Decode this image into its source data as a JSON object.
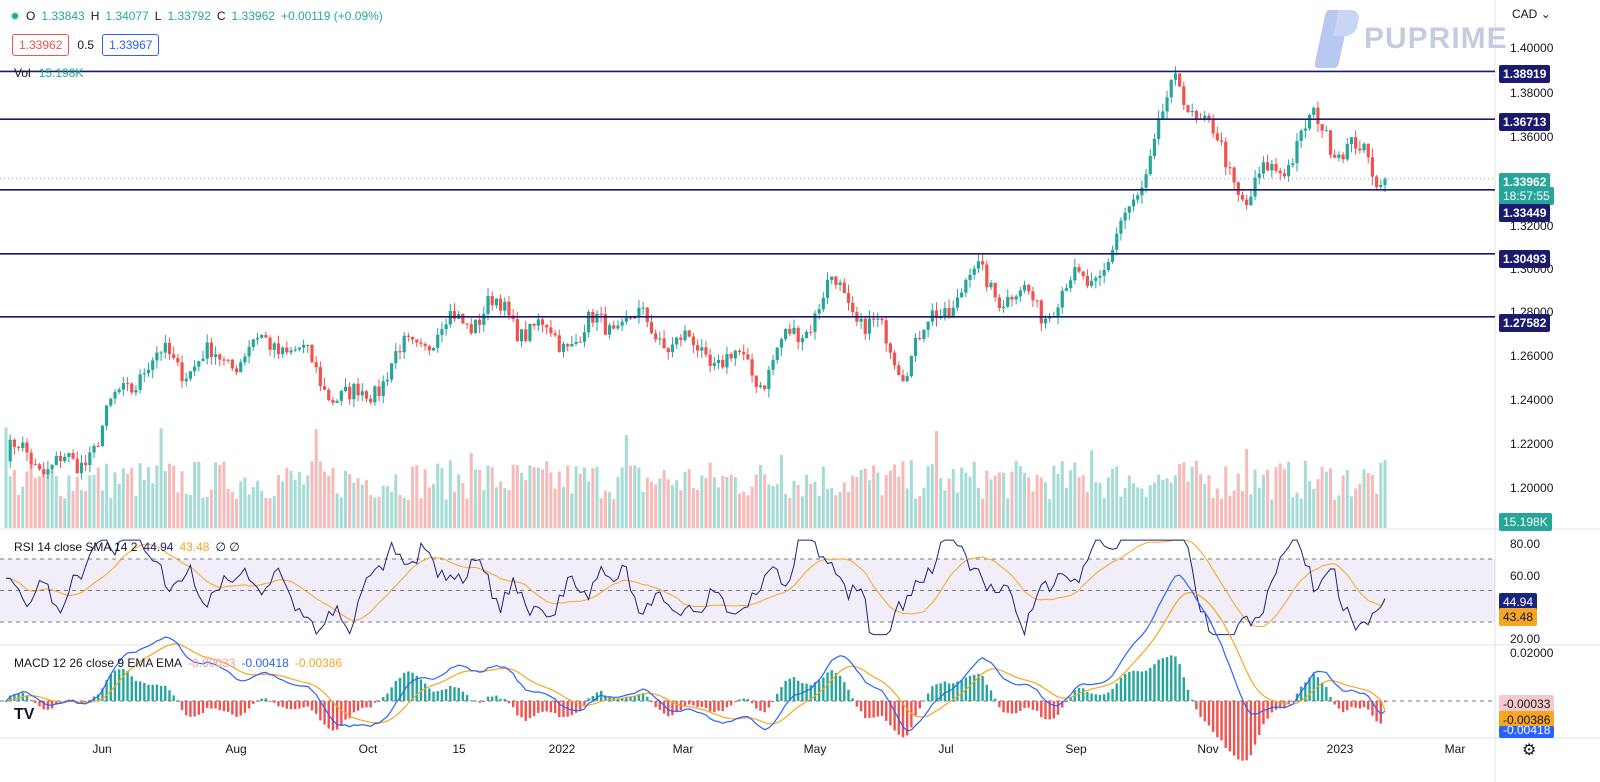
{
  "header": {
    "open_label": "O",
    "open": "1.33843",
    "high_label": "H",
    "high": "1.34077",
    "low_label": "L",
    "low": "1.33792",
    "close_label": "C",
    "close": "1.33962",
    "change": "+0.00119 (+0.09%)",
    "bid": "1.33962",
    "spread": "0.5",
    "ask": "1.33967",
    "vol_label": "Vol",
    "vol_value": "15.198K",
    "currency": "CAD",
    "brand": "PUPRIME"
  },
  "price_axis": [
    "1.40000",
    "1.38000",
    "1.36000",
    "1.32000",
    "1.30000",
    "1.28000",
    "1.26000",
    "1.24000",
    "1.22000",
    "1.20000"
  ],
  "price_tags": {
    "res1": "1.38919",
    "res2": "1.36713",
    "current": "1.33962",
    "countdown": "18:57:55",
    "sup1": "1.33449",
    "sup2": "1.30493",
    "sup3": "1.27582",
    "volume": "15.198K"
  },
  "rsi": {
    "label": "RSI 14 close SMA 14 2",
    "value": "44.94",
    "sma": "43.48",
    "extra": "∅ ∅",
    "axis": [
      "80.00",
      "60.00",
      "20.00"
    ],
    "tag_value": "44.94",
    "tag_sma": "43.48"
  },
  "macd": {
    "label": "MACD 12 26 close 9 EMA EMA",
    "hist": "-0.00033",
    "macd": "-0.00418",
    "signal": "-0.00386",
    "axis_top": "0.02000",
    "tag_hist": "-0.00033",
    "tag_signal": "-0.00386",
    "tag_macd": "-0.00418"
  },
  "x_axis": [
    "Jun",
    "Aug",
    "Oct",
    "15",
    "2022",
    "Mar",
    "May",
    "Jul",
    "Sep",
    "Nov",
    "2023",
    "Mar"
  ],
  "colors": {
    "up": "#26a69a",
    "down": "#ef5350",
    "levels": "#1a1a6e",
    "rsi": "#1a237e",
    "rsi_sma": "#f6a623",
    "macd": "#2962ff",
    "signal": "#f6a623"
  },
  "chart_data": {
    "type": "candlestick",
    "symbol_currency": "CAD",
    "horizontal_levels": [
      1.38919,
      1.36713,
      1.33449,
      1.30493,
      1.27582
    ],
    "ylim": [
      1.19,
      1.405
    ],
    "approx_close_path": [
      {
        "x": "May 2021",
        "y": 1.213
      },
      {
        "x": "Jun 2021",
        "y": 1.205
      },
      {
        "x": "Jul 2021",
        "y": 1.255
      },
      {
        "x": "Aug 2021",
        "y": 1.255
      },
      {
        "x": "Sep 2021",
        "y": 1.265
      },
      {
        "x": "Oct 2021",
        "y": 1.235
      },
      {
        "x": "Nov 2021",
        "y": 1.265
      },
      {
        "x": "Dec 2021",
        "y": 1.28
      },
      {
        "x": "Jan 2022",
        "y": 1.265
      },
      {
        "x": "Feb 2022",
        "y": 1.275
      },
      {
        "x": "Mar 2022",
        "y": 1.26
      },
      {
        "x": "Apr 2022",
        "y": 1.25
      },
      {
        "x": "May 2022",
        "y": 1.29
      },
      {
        "x": "Jun 2022",
        "y": 1.255
      },
      {
        "x": "Jul 2022",
        "y": 1.295
      },
      {
        "x": "Aug 2022",
        "y": 1.28
      },
      {
        "x": "Sep 2022",
        "y": 1.3
      },
      {
        "x": "Oct 2022",
        "y": 1.385
      },
      {
        "x": "Nov 2022",
        "y": 1.33
      },
      {
        "x": "Dec 2022",
        "y": 1.365
      },
      {
        "x": "Jan 2023",
        "y": 1.34
      }
    ]
  }
}
